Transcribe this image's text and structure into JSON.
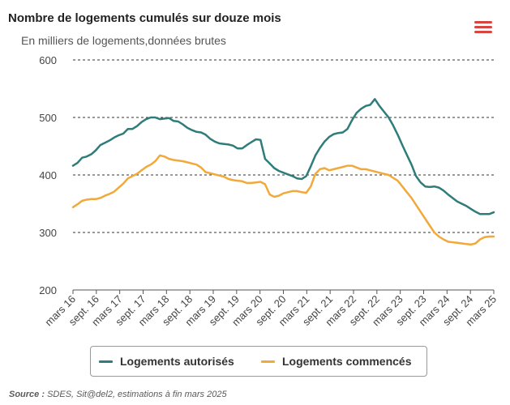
{
  "chart_data": {
    "type": "line",
    "title": "Nombre de logements cumulés sur douze mois",
    "subtitle": "En milliers de logements,données brutes",
    "ylim": [
      200,
      600
    ],
    "yticks": [
      200,
      300,
      400,
      500,
      600
    ],
    "xtick_labels": [
      "mars 16",
      "sept. 16",
      "mars 17",
      "sept. 17",
      "mars 18",
      "sept. 18",
      "mars 19",
      "sept. 19",
      "mars 20",
      "sept. 20",
      "mars 21",
      "sept. 21",
      "mars 22",
      "sept. 22",
      "mars 23",
      "sept. 23",
      "mars 24",
      "sept. 24",
      "mars 25"
    ],
    "grid": "horizontal-dashed",
    "legend_position": "bottom",
    "series": [
      {
        "name": "Logements autorisés",
        "color": "#2e7d7a",
        "values": [
          416,
          421,
          430,
          432,
          436,
          443,
          452,
          456,
          460,
          465,
          469,
          472,
          480,
          480,
          485,
          492,
          497,
          500,
          500,
          497,
          498,
          499,
          494,
          493,
          488,
          482,
          478,
          475,
          474,
          470,
          463,
          458,
          455,
          454,
          453,
          451,
          446,
          446,
          452,
          457,
          462,
          461,
          428,
          420,
          412,
          407,
          404,
          401,
          398,
          394,
          393,
          398,
          415,
          434,
          447,
          458,
          466,
          471,
          473,
          474,
          480,
          495,
          508,
          515,
          520,
          522,
          532,
          520,
          510,
          500,
          486,
          470,
          452,
          435,
          418,
          398,
          387,
          380,
          379,
          380,
          378,
          373,
          366,
          360,
          354,
          350,
          346,
          341,
          336,
          332,
          332,
          332,
          335
        ]
      },
      {
        "name": "Logements commencés",
        "color": "#f2a93b",
        "values": [
          344,
          349,
          355,
          357,
          358,
          358,
          360,
          364,
          367,
          371,
          378,
          385,
          394,
          398,
          402,
          408,
          414,
          418,
          424,
          434,
          432,
          428,
          426,
          425,
          424,
          422,
          420,
          418,
          413,
          405,
          403,
          401,
          399,
          397,
          393,
          391,
          390,
          389,
          386,
          386,
          387,
          388,
          384,
          366,
          362,
          364,
          368,
          370,
          372,
          372,
          370,
          369,
          380,
          402,
          410,
          412,
          408,
          410,
          412,
          414,
          416,
          416,
          413,
          410,
          410,
          408,
          406,
          404,
          402,
          400,
          395,
          390,
          380,
          370,
          360,
          348,
          336,
          324,
          312,
          300,
          293,
          288,
          284,
          283,
          282,
          281,
          280,
          279,
          281,
          288,
          292,
          293,
          293
        ]
      }
    ]
  },
  "legend": {
    "items": [
      {
        "label": "Logements autorisés",
        "color": "#2e7d7a"
      },
      {
        "label": "Logements commencés",
        "color": "#f2a93b"
      }
    ]
  },
  "menu": {
    "icon": "hamburger-menu-icon",
    "color": "#d64541"
  },
  "source": {
    "label": "Source :",
    "text": " SDES, Sit@del2, estimations à fin mars 2025"
  }
}
